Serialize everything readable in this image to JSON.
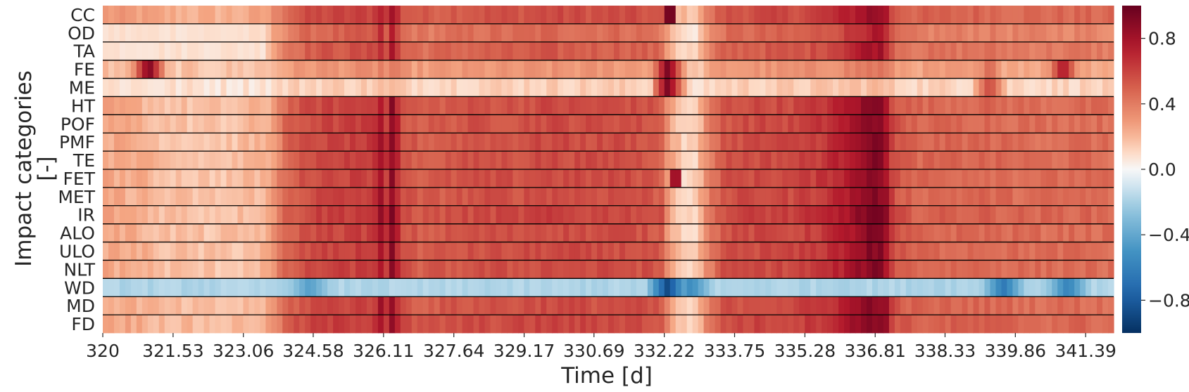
{
  "chart_data": {
    "type": "heatmap",
    "title": "",
    "xlabel": "Time [d]",
    "ylabel": "Impact categories",
    "ylabel_unit": "[-]",
    "x_range": [
      320.0,
      342.0
    ],
    "x_ticks": [
      320.0,
      321.53,
      323.06,
      324.58,
      326.11,
      327.64,
      329.17,
      330.69,
      332.22,
      333.75,
      335.28,
      336.81,
      338.33,
      339.86,
      341.39
    ],
    "rows": [
      "CC",
      "OD",
      "TA",
      "FE",
      "ME",
      "HT",
      "POF",
      "PMF",
      "TE",
      "FET",
      "MET",
      "IR",
      "ALO",
      "ULO",
      "NLT",
      "WD",
      "MD",
      "FD"
    ],
    "colormap": "RdBu_r",
    "color_range": [
      -1.0,
      1.0
    ],
    "colorbar_ticks": [
      "0.8",
      "0.4",
      "0.0",
      "−0.4",
      "−0.8"
    ],
    "colorbar_tick_values": [
      0.8,
      0.4,
      0.0,
      -0.4,
      -0.8
    ],
    "grid": false,
    "row_separators": true,
    "time_profile": {
      "x": [
        320.0,
        320.8,
        321.3,
        321.7,
        322.3,
        323.0,
        323.6,
        324.0,
        324.6,
        325.3,
        325.9,
        326.1,
        326.2,
        326.3,
        326.5,
        327.0,
        327.6,
        328.3,
        329.0,
        329.6,
        330.2,
        330.7,
        331.2,
        331.8,
        332.2,
        332.3,
        332.6,
        332.9,
        333.2,
        333.5,
        334.0,
        334.5,
        335.0,
        335.5,
        336.0,
        336.4,
        336.7,
        337.0,
        337.2,
        337.6,
        338.2,
        339.0,
        339.8,
        340.5,
        341.2,
        342.0
      ],
      "base": [
        0.25,
        0.22,
        0.18,
        0.17,
        0.16,
        0.17,
        0.22,
        0.48,
        0.58,
        0.6,
        0.62,
        0.85,
        0.55,
        0.88,
        0.55,
        0.5,
        0.53,
        0.55,
        0.55,
        0.58,
        0.57,
        0.56,
        0.57,
        0.55,
        0.5,
        0.3,
        0.12,
        0.12,
        0.38,
        0.54,
        0.57,
        0.58,
        0.58,
        0.62,
        0.7,
        0.8,
        0.9,
        0.88,
        0.55,
        0.48,
        0.47,
        0.48,
        0.46,
        0.45,
        0.46,
        0.44
      ]
    },
    "row_profiles": {
      "CC": {
        "scale": 0.85,
        "offset": 0.08,
        "spikes": [
          [
            332.3,
            0.95
          ]
        ]
      },
      "OD": {
        "scale": 0.85,
        "offset": -0.02,
        "early": 0.08
      },
      "TA": {
        "scale": 0.9,
        "offset": 0.0,
        "early": 0.08
      },
      "FE": {
        "scale": 0.35,
        "offset": 0.1,
        "bumps": [
          [
            321.0,
            0.95
          ],
          [
            332.3,
            0.95
          ],
          [
            339.3,
            0.5
          ],
          [
            340.9,
            0.8
          ]
        ]
      },
      "ME": {
        "scale": 0.15,
        "offset": 0.05,
        "bumps": [
          [
            332.3,
            0.95
          ],
          [
            339.3,
            0.6
          ]
        ]
      },
      "HT": {
        "scale": 1.0,
        "offset": 0.0
      },
      "POF": {
        "scale": 1.0,
        "offset": 0.0
      },
      "PMF": {
        "scale": 1.0,
        "offset": 0.0
      },
      "TE": {
        "scale": 1.0,
        "offset": 0.0
      },
      "FET": {
        "scale": 1.0,
        "offset": 0.0,
        "spikes": [
          [
            332.45,
            0.8
          ]
        ]
      },
      "MET": {
        "scale": 1.0,
        "offset": 0.0
      },
      "IR": {
        "scale": 1.05,
        "offset": 0.0
      },
      "ALO": {
        "scale": 1.0,
        "offset": 0.0
      },
      "ULO": {
        "scale": 1.0,
        "offset": 0.0
      },
      "NLT": {
        "scale": 1.0,
        "offset": 0.0
      },
      "WD": {
        "fixed": -0.18,
        "negative_bumps": [
          [
            324.5,
            -0.45
          ],
          [
            332.3,
            -0.9
          ],
          [
            332.8,
            -0.55
          ],
          [
            339.6,
            -0.65
          ],
          [
            341.0,
            -0.6
          ]
        ]
      },
      "MD": {
        "scale": 1.0,
        "offset": 0.0
      },
      "FD": {
        "scale": 1.0,
        "offset": 0.02
      }
    }
  }
}
